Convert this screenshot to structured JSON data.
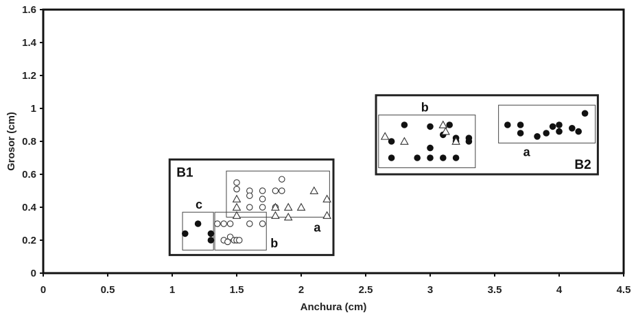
{
  "chart_data": {
    "type": "scatter",
    "xlabel": "Anchura (cm)",
    "ylabel": "Grosor  (cm)",
    "xlim": [
      0,
      4.5
    ],
    "ylim": [
      0,
      1.6
    ],
    "x_ticks": [
      "0",
      "0.5",
      "1",
      "1.5",
      "2",
      "2.5",
      "3",
      "3.5",
      "4",
      "4.5"
    ],
    "y_ticks": [
      "0",
      "0.2",
      "0.4",
      "0.6",
      "0.8",
      "1",
      "1.2",
      "1.4",
      "1.6"
    ],
    "grid": false,
    "series": [
      {
        "marker": "filled-circle",
        "points": [
          [
            1.1,
            0.24
          ],
          [
            1.2,
            0.3
          ],
          [
            1.3,
            0.2
          ],
          [
            1.3,
            0.24
          ],
          [
            2.7,
            0.7
          ],
          [
            2.7,
            0.8
          ],
          [
            2.8,
            0.9
          ],
          [
            2.9,
            0.7
          ],
          [
            3.0,
            0.7
          ],
          [
            3.0,
            0.76
          ],
          [
            3.0,
            0.89
          ],
          [
            3.1,
            0.7
          ],
          [
            3.1,
            0.84
          ],
          [
            3.15,
            0.9
          ],
          [
            3.2,
            0.7
          ],
          [
            3.2,
            0.82
          ],
          [
            3.2,
            0.8
          ],
          [
            3.3,
            0.82
          ],
          [
            3.3,
            0.8
          ],
          [
            3.6,
            0.9
          ],
          [
            3.7,
            0.85
          ],
          [
            3.7,
            0.9
          ],
          [
            3.83,
            0.83
          ],
          [
            3.9,
            0.85
          ],
          [
            3.95,
            0.89
          ],
          [
            4.0,
            0.86
          ],
          [
            4.0,
            0.9
          ],
          [
            4.1,
            0.88
          ],
          [
            4.15,
            0.86
          ],
          [
            4.2,
            0.97
          ]
        ]
      },
      {
        "marker": "open-circle",
        "points": [
          [
            1.35,
            0.3
          ],
          [
            1.4,
            0.3
          ],
          [
            1.45,
            0.3
          ],
          [
            1.4,
            0.2
          ],
          [
            1.43,
            0.19
          ],
          [
            1.45,
            0.22
          ],
          [
            1.48,
            0.2
          ],
          [
            1.5,
            0.2
          ],
          [
            1.52,
            0.2
          ],
          [
            1.5,
            0.51
          ],
          [
            1.5,
            0.55
          ],
          [
            1.6,
            0.5
          ],
          [
            1.6,
            0.47
          ],
          [
            1.6,
            0.4
          ],
          [
            1.6,
            0.3
          ],
          [
            1.7,
            0.5
          ],
          [
            1.7,
            0.45
          ],
          [
            1.7,
            0.4
          ],
          [
            1.7,
            0.3
          ],
          [
            1.8,
            0.5
          ],
          [
            1.8,
            0.4
          ],
          [
            1.85,
            0.5
          ],
          [
            1.85,
            0.57
          ]
        ]
      },
      {
        "marker": "open-triangle",
        "points": [
          [
            1.5,
            0.45
          ],
          [
            1.5,
            0.4
          ],
          [
            1.5,
            0.35
          ],
          [
            1.8,
            0.4
          ],
          [
            1.8,
            0.35
          ],
          [
            1.9,
            0.4
          ],
          [
            1.9,
            0.34
          ],
          [
            2.0,
            0.4
          ],
          [
            2.1,
            0.5
          ],
          [
            2.2,
            0.45
          ],
          [
            2.2,
            0.35
          ],
          [
            2.65,
            0.83
          ],
          [
            2.8,
            0.8
          ],
          [
            3.1,
            0.9
          ],
          [
            3.12,
            0.86
          ],
          [
            3.2,
            0.8
          ]
        ]
      }
    ],
    "groups": [
      {
        "label": "B1",
        "x": [
          0.98,
          2.25
        ],
        "y": [
          0.11,
          0.69
        ],
        "border": "thick"
      },
      {
        "label": "B2",
        "x": [
          2.58,
          4.3
        ],
        "y": [
          0.6,
          1.08
        ],
        "border": "thick"
      },
      {
        "label": "a",
        "x": [
          1.42,
          2.22
        ],
        "y": [
          0.34,
          0.62
        ],
        "border": "thin"
      },
      {
        "label": "b",
        "x": [
          1.33,
          1.73
        ],
        "y": [
          0.14,
          0.37
        ],
        "border": "thin"
      },
      {
        "label": "c",
        "x": [
          1.08,
          1.32
        ],
        "y": [
          0.14,
          0.37
        ],
        "border": "thin"
      },
      {
        "label": "b",
        "x": [
          2.6,
          3.35
        ],
        "y": [
          0.64,
          0.96
        ],
        "border": "thin"
      },
      {
        "label": "a",
        "x": [
          3.53,
          4.28
        ],
        "y": [
          0.79,
          1.02
        ],
        "border": "thin"
      }
    ]
  }
}
